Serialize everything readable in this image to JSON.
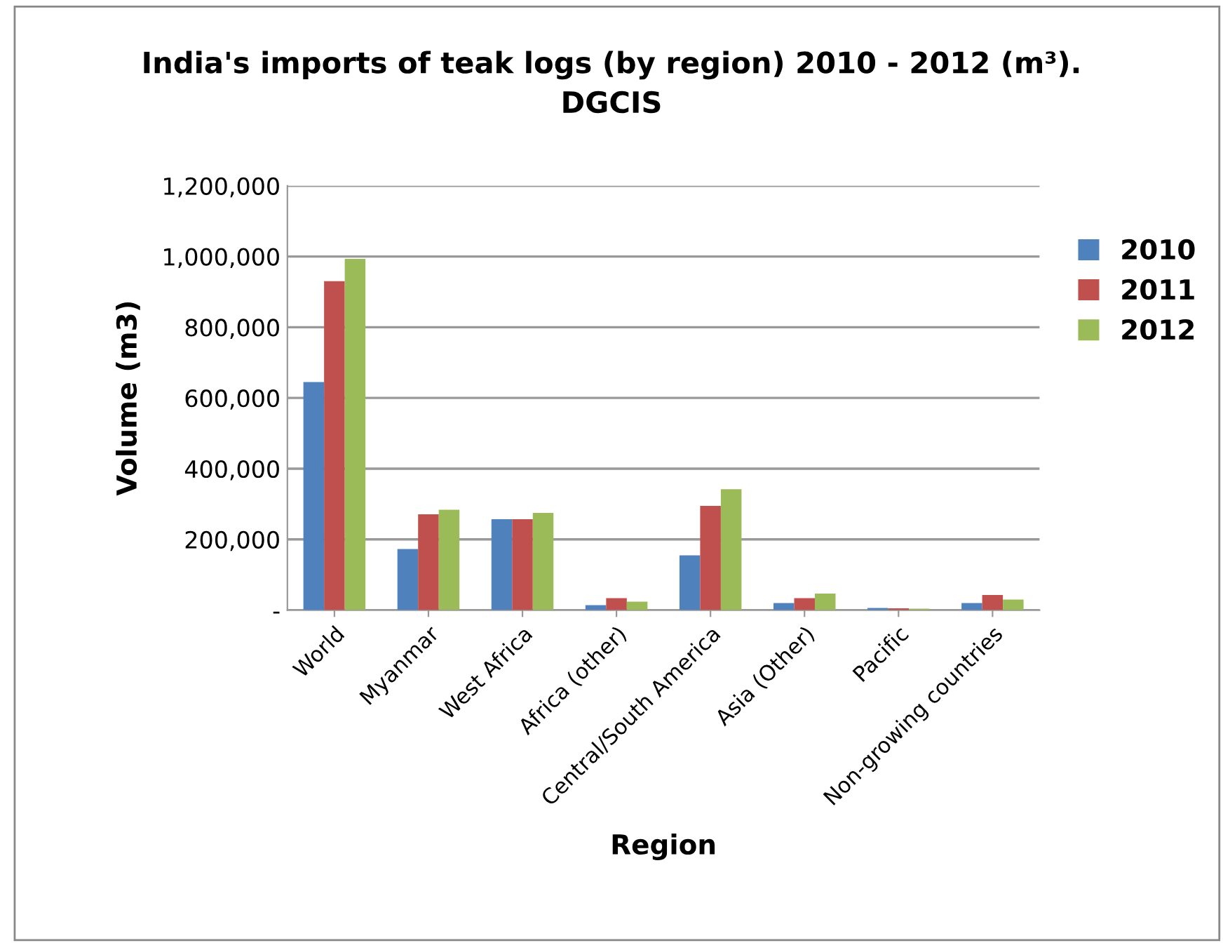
{
  "chart_data": {
    "type": "bar",
    "title": "India's imports of teak logs (by region) 2010 - 2012 (m³).\nDGCIS",
    "xlabel": "Region",
    "ylabel": "Volume (m3)",
    "categories": [
      "World",
      "Myanmar",
      "West Africa",
      "Africa (other)",
      "Central/South America",
      "Asia (Other)",
      "Pacific",
      "Non-growing countries"
    ],
    "series": [
      {
        "name": "2010",
        "color": "#4f81bd",
        "values": [
          645000,
          173000,
          257000,
          14000,
          155000,
          20000,
          6000,
          20000
        ]
      },
      {
        "name": "2011",
        "color": "#c0504d",
        "values": [
          930000,
          271000,
          257000,
          34000,
          295000,
          34000,
          5000,
          43000
        ]
      },
      {
        "name": "2012",
        "color": "#9bbb59",
        "values": [
          993000,
          284000,
          275000,
          24000,
          342000,
          47000,
          4000,
          30000
        ]
      }
    ],
    "ylim": [
      0,
      1200000
    ],
    "yticks": [
      {
        "value": 0,
        "label": "-"
      },
      {
        "value": 200000,
        "label": "200,000"
      },
      {
        "value": 400000,
        "label": "400,000"
      },
      {
        "value": 600000,
        "label": "600,000"
      },
      {
        "value": 800000,
        "label": "800,000"
      },
      {
        "value": 1000000,
        "label": "1,000,000"
      },
      {
        "value": 1200000,
        "label": "1,200,000"
      }
    ],
    "grid": "y",
    "legend": "right"
  }
}
